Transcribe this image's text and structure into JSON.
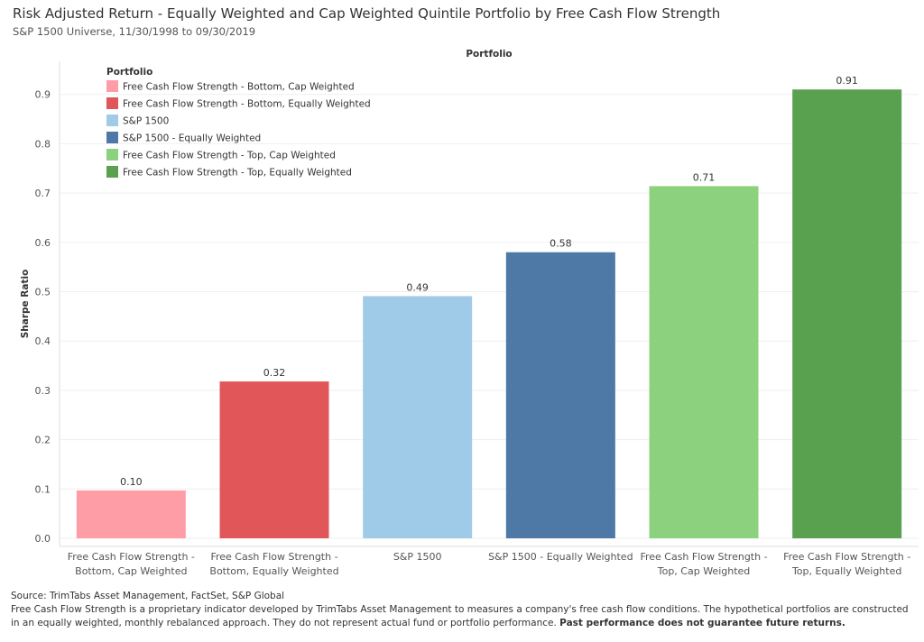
{
  "header": {
    "title": "Risk Adjusted Return - Equally Weighted and Cap Weighted Quintile Portfolio by Free Cash Flow Strength",
    "subtitle": "S&P 1500 Universe, 11/30/1998 to 09/30/2019"
  },
  "chart_data": {
    "type": "bar",
    "column_header": "Portfolio",
    "ylabel": "Sharpe Ratio",
    "ylim": [
      0,
      0.93
    ],
    "yticks": [
      "0.0",
      "0.1",
      "0.2",
      "0.3",
      "0.4",
      "0.5",
      "0.6",
      "0.7",
      "0.8",
      "0.9"
    ],
    "grid": true,
    "legend": {
      "title": "Portfolio",
      "placement": "top-left"
    },
    "categories": [
      [
        "Free Cash Flow Strength -",
        "Bottom, Cap Weighted"
      ],
      [
        "Free Cash Flow Strength -",
        "Bottom, Equally Weighted"
      ],
      [
        "S&P 1500"
      ],
      [
        "S&P 1500 - Equally Weighted"
      ],
      [
        "Free Cash Flow Strength -",
        "Top, Cap Weighted"
      ],
      [
        "Free Cash Flow Strength -",
        "Top, Equally Weighted"
      ]
    ],
    "series": [
      {
        "name": "Free Cash Flow Strength - Bottom, Cap Weighted",
        "value": 0.097,
        "label": "0.10",
        "color": "#ff9da7"
      },
      {
        "name": "Free Cash Flow Strength - Bottom, Equally Weighted",
        "value": 0.318,
        "label": "0.32",
        "color": "#e15759"
      },
      {
        "name": "S&P 1500",
        "value": 0.491,
        "label": "0.49",
        "color": "#a0cbe8"
      },
      {
        "name": "S&P 1500 - Equally Weighted",
        "value": 0.58,
        "label": "0.58",
        "color": "#4e79a7"
      },
      {
        "name": "Free Cash Flow Strength - Top, Cap Weighted",
        "value": 0.714,
        "label": "0.71",
        "color": "#8cd17d"
      },
      {
        "name": "Free Cash Flow Strength - Top, Equally Weighted",
        "value": 0.91,
        "label": "0.91",
        "color": "#59a14f"
      }
    ]
  },
  "footer": {
    "source": "Source: TrimTabs Asset Management, FactSet, S&P Global",
    "note": "Free Cash Flow Strength is a proprietary indicator developed by TrimTabs Asset Management to measures a company's free cash flow conditions. The hypothetical portfolios are constructed in an equally weighted, monthly rebalanced approach. They do not represent actual fund or portfolio performance.",
    "disclaimer": "Past performance does not guarantee future returns."
  }
}
